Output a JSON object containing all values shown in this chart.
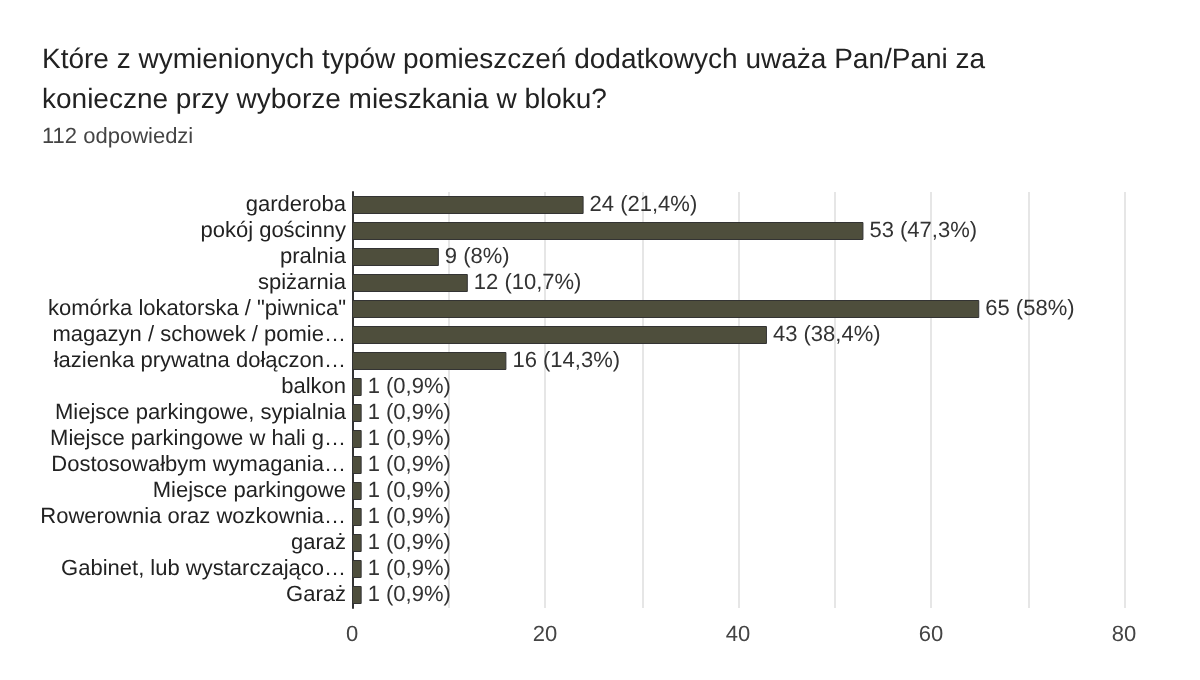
{
  "chart_data": {
    "type": "bar",
    "orientation": "horizontal",
    "title": "Które z wymienionych typów pomieszczeń dodatkowych uważa Pan/Pani za konieczne przy wyborze mieszkania w bloku?",
    "subtitle": "112 odpowiedzi",
    "categories": [
      "garderoba",
      "pokój gościnny",
      "pralnia",
      "spiżarnia",
      "komórka lokatorska / \"piwnica\"",
      "magazyn / schowek / pomie…",
      "łazienka prywatna dołączon…",
      "balkon",
      "Miejsce parkingowe, sypialnia",
      "Miejsce parkingowe w hali g…",
      "Dostosowałbym wymagania…",
      "Miejsce parkingowe",
      "Rowerownia oraz wozkownia…",
      "garaż",
      "Gabinet, lub wystarczająco…",
      "Garaż"
    ],
    "values": [
      24,
      53,
      9,
      12,
      65,
      43,
      16,
      1,
      1,
      1,
      1,
      1,
      1,
      1,
      1,
      1
    ],
    "value_labels": [
      "24 (21,4%)",
      "53 (47,3%)",
      "9 (8%)",
      "12 (10,7%)",
      "65 (58%)",
      "43 (38,4%)",
      "16 (14,3%)",
      "1 (0,9%)",
      "1 (0,9%)",
      "1 (0,9%)",
      "1 (0,9%)",
      "1 (0,9%)",
      "1 (0,9%)",
      "1 (0,9%)",
      "1 (0,9%)",
      "1 (0,9%)"
    ],
    "color": "#4e4e3c",
    "xlim": [
      0,
      80
    ],
    "xticks": [
      0,
      {
        "value": 10,
        "label": null
      },
      20,
      {
        "value": 30,
        "label": null
      },
      40,
      {
        "value": 50,
        "label": null
      },
      60,
      {
        "value": 70,
        "label": null
      },
      80
    ],
    "grid": "x"
  }
}
